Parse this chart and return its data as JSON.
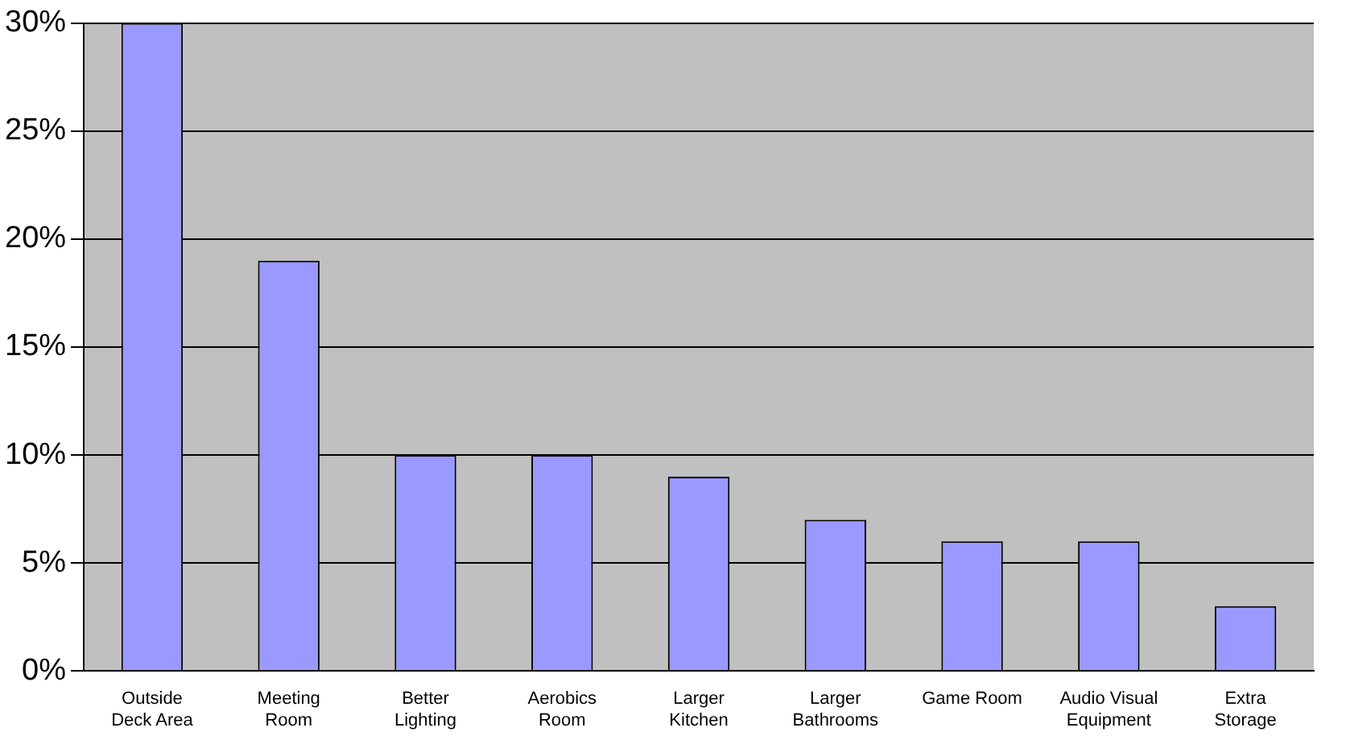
{
  "chart_data": {
    "type": "bar",
    "categories": [
      "Outside Deck Area",
      "Meeting Room",
      "Better Lighting",
      "Aerobics Room",
      "Larger Kitchen",
      "Larger Bathrooms",
      "Game Room",
      "Audio Visual Equipment",
      "Extra Storage"
    ],
    "values": [
      30,
      19,
      10,
      10,
      9,
      7,
      6,
      6,
      3
    ],
    "color": "#9999ff",
    "ylim": [
      0,
      30
    ],
    "yticks": [
      {
        "value": 0,
        "label": "0%"
      },
      {
        "value": 5,
        "label": "5%"
      },
      {
        "value": 10,
        "label": "10%"
      },
      {
        "value": 15,
        "label": "15%"
      },
      {
        "value": 20,
        "label": "20%"
      },
      {
        "value": 25,
        "label": "25%"
      },
      {
        "value": 30,
        "label": "30%"
      }
    ],
    "grid": "y",
    "legend": false
  }
}
